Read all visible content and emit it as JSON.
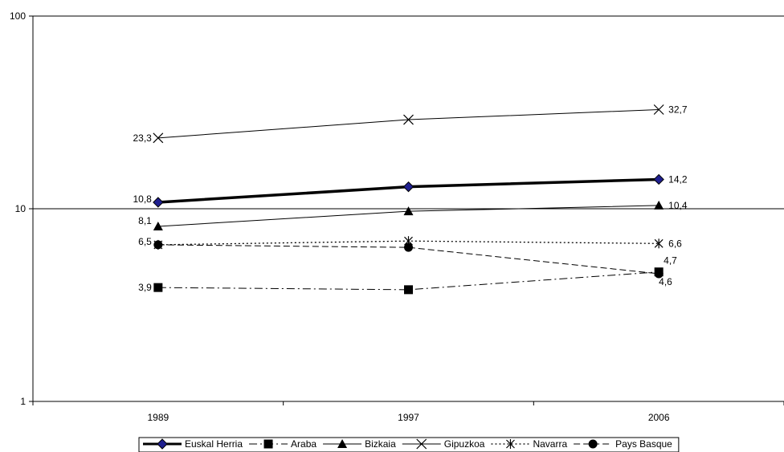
{
  "chart_data": {
    "type": "line",
    "title": "",
    "xlabel": "",
    "ylabel": "",
    "yscale": "log",
    "ylim": [
      1,
      100
    ],
    "yticks": [
      "1",
      "10",
      "100"
    ],
    "categories": [
      "1989",
      "1997",
      "2006"
    ],
    "grid": "horizontal major gridlines",
    "legend_position": "bottom",
    "series": [
      {
        "name": "Euskal Herria",
        "values": [
          10.8,
          13.0,
          14.2
        ],
        "labels": [
          "10,8",
          "",
          "14,2"
        ],
        "color": "#000000",
        "marker_fill": "#1f1f8f",
        "marker": "diamond",
        "line": "solid-thick"
      },
      {
        "name": "Araba",
        "values": [
          3.9,
          3.8,
          4.7
        ],
        "labels": [
          "3,9",
          "",
          "4,7"
        ],
        "color": "#000000",
        "marker": "square",
        "line": "dash-dot"
      },
      {
        "name": "Bizkaia",
        "values": [
          8.1,
          9.7,
          10.4
        ],
        "labels": [
          "8,1",
          "",
          "10,4"
        ],
        "color": "#000000",
        "marker": "triangle",
        "line": "solid"
      },
      {
        "name": "Gipuzkoa",
        "values": [
          23.3,
          29.0,
          32.7
        ],
        "labels": [
          "23,3",
          "",
          "32,7"
        ],
        "color": "#000000",
        "marker": "x",
        "line": "solid"
      },
      {
        "name": "Navarra",
        "values": [
          6.5,
          6.8,
          6.6
        ],
        "labels": [
          "6,5",
          "",
          "6,6"
        ],
        "color": "#000000",
        "marker": "star",
        "line": "dotted"
      },
      {
        "name": "Pays Basque",
        "values": [
          6.5,
          6.3,
          4.6
        ],
        "labels": [
          "",
          "",
          "4,6"
        ],
        "color": "#000000",
        "marker": "circle",
        "line": "dashed"
      }
    ]
  }
}
